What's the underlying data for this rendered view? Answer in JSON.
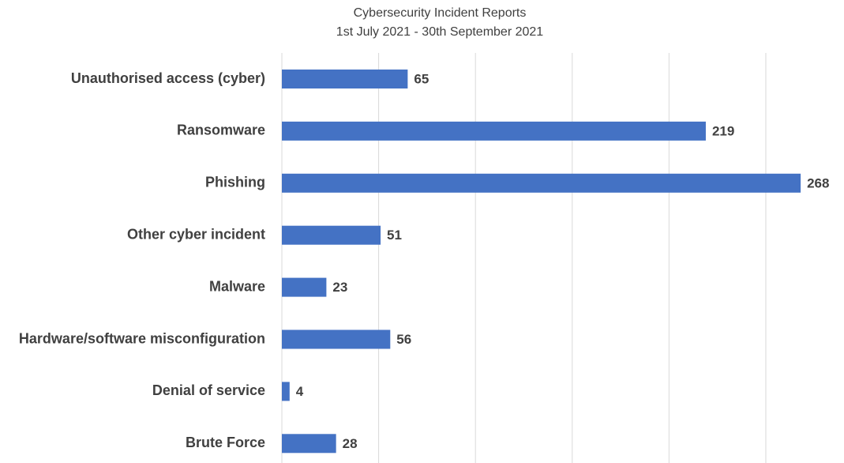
{
  "chart_data": {
    "type": "bar",
    "orientation": "horizontal",
    "title": "Cybersecurity Incident Reports",
    "subtitle": "1st July 2021 - 30th September 2021",
    "categories": [
      "Unauthorised access (cyber)",
      "Ransomware",
      "Phishing",
      "Other cyber incident",
      "Malware",
      "Hardware/software misconfiguration",
      "Denial of service",
      "Brute Force"
    ],
    "values": [
      65,
      219,
      268,
      51,
      23,
      56,
      4,
      28
    ],
    "color": "#4472c4",
    "xlim": [
      0,
      270
    ],
    "xticks": [
      0,
      50,
      100,
      150,
      200,
      250
    ],
    "grid": true
  }
}
